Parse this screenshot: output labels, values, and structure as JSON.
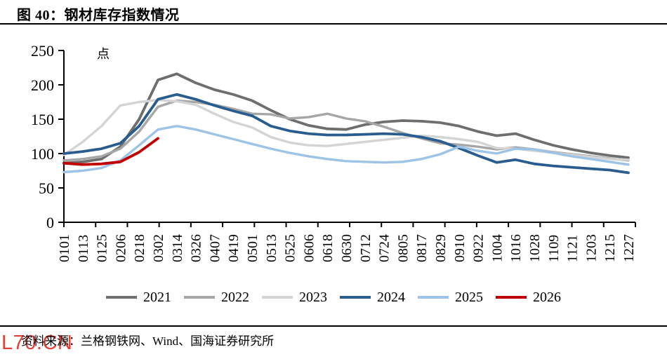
{
  "header": {
    "title": "图 40：钢材库存指数情况"
  },
  "chart": {
    "unit_label": "点"
  },
  "chart_data": {
    "type": "line",
    "title": "钢材库存指数情况",
    "ylabel": "点",
    "xlabel": "",
    "ylim": [
      0,
      250
    ],
    "yticks": [
      0,
      50,
      100,
      150,
      200,
      250
    ],
    "grid": false,
    "legend_position": "bottom",
    "x_labels": [
      "0101",
      "0113",
      "0125",
      "0206",
      "0218",
      "0302",
      "0314",
      "0326",
      "0407",
      "0419",
      "0501",
      "0513",
      "0525",
      "0606",
      "0618",
      "0630",
      "0712",
      "0724",
      "0805",
      "0817",
      "0829",
      "0910",
      "0922",
      "1004",
      "1016",
      "1028",
      "1109",
      "1121",
      "1203",
      "1215",
      "1227"
    ],
    "series": [
      {
        "name": "2021",
        "color": "#6e6e6e",
        "width": 3.8,
        "values": [
          86,
          88,
          92,
          110,
          150,
          207,
          216,
          203,
          193,
          186,
          177,
          163,
          150,
          141,
          136,
          135,
          142,
          146,
          148,
          147,
          145,
          140,
          132,
          126,
          129,
          120,
          112,
          106,
          101,
          97,
          94
        ]
      },
      {
        "name": "2022",
        "color": "#a6a6a6",
        "width": 3.4,
        "values": [
          90,
          92,
          96,
          107,
          132,
          168,
          177,
          175,
          171,
          165,
          158,
          157,
          151,
          153,
          158,
          151,
          147,
          139,
          130,
          122,
          115,
          113,
          110,
          106,
          109,
          106,
          102,
          99,
          96,
          93,
          90
        ]
      },
      {
        "name": "2023",
        "color": "#d4d4d4",
        "width": 3.4,
        "values": [
          98,
          117,
          140,
          170,
          175,
          178,
          176,
          171,
          158,
          146,
          138,
          124,
          116,
          112,
          111,
          114,
          117,
          120,
          123,
          126,
          124,
          121,
          117,
          108,
          107,
          104,
          101,
          98,
          95,
          92,
          91
        ]
      },
      {
        "name": "2024",
        "color": "#2a5d8f",
        "width": 3.8,
        "values": [
          100,
          103,
          107,
          115,
          140,
          179,
          186,
          179,
          170,
          162,
          155,
          140,
          133,
          129,
          127,
          127,
          128,
          129,
          128,
          124,
          118,
          108,
          97,
          87,
          91,
          85,
          82,
          80,
          78,
          76,
          72
        ]
      },
      {
        "name": "2025",
        "color": "#9dc3e6",
        "width": 3.4,
        "values": [
          73,
          75,
          79,
          90,
          112,
          135,
          140,
          135,
          128,
          121,
          114,
          107,
          101,
          96,
          92,
          89,
          88,
          87,
          88,
          92,
          99,
          110,
          104,
          100,
          107,
          106,
          101,
          96,
          92,
          88,
          84
        ]
      },
      {
        "name": "2026",
        "color": "#c00000",
        "width": 3.8,
        "values": [
          86,
          84,
          85,
          88,
          102,
          122,
          null,
          null,
          null,
          null,
          null,
          null,
          null,
          null,
          null,
          null,
          null,
          null,
          null,
          null,
          null,
          null,
          null,
          null,
          null,
          null,
          null,
          null,
          null,
          null,
          null
        ]
      }
    ]
  },
  "footer": {
    "source": "资料来源：兰格钢铁网、Wind、国海证券研究所",
    "watermark": "L70.CN"
  }
}
